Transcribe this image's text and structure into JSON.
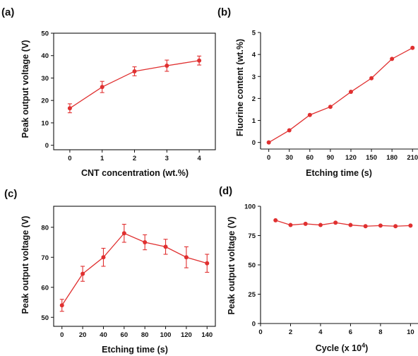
{
  "colors": {
    "series": "#e03030",
    "axis": "#111111"
  },
  "chart_data": [
    {
      "panel": "(a)",
      "type": "line",
      "xlabel": "CNT concentration (wt.%)",
      "ylabel": "Peak output voltage (V)",
      "x": [
        0,
        1,
        2,
        3,
        4
      ],
      "xticks": [
        "0",
        "1",
        "2",
        "3",
        "4"
      ],
      "xlim": [
        -0.5,
        4.5
      ],
      "ylim": [
        -2,
        50
      ],
      "yticks": [
        "0",
        "10",
        "20",
        "30",
        "40",
        "50"
      ],
      "series": [
        {
          "values": [
            16.5,
            26,
            33,
            35.5,
            37.8
          ],
          "error": [
            2,
            2.5,
            2,
            2.5,
            2
          ]
        }
      ]
    },
    {
      "panel": "(b)",
      "type": "line",
      "xlabel": "Etching time (s)",
      "ylabel": "Fluorine content (wt.%)",
      "x": [
        0,
        30,
        60,
        90,
        120,
        150,
        180,
        210
      ],
      "xticks": [
        "0",
        "30",
        "60",
        "90",
        "120",
        "150",
        "180",
        "210"
      ],
      "xlim": [
        -12,
        218
      ],
      "ylim": [
        -0.3,
        5
      ],
      "yticks": [
        "0",
        "1",
        "2",
        "3",
        "4",
        "5"
      ],
      "series": [
        {
          "values": [
            0,
            0.55,
            1.25,
            1.62,
            2.3,
            2.92,
            3.8,
            4.3
          ]
        }
      ]
    },
    {
      "panel": "(c)",
      "type": "line",
      "xlabel": "Etching time (s)",
      "ylabel": "Peak output voltage (V)",
      "x": [
        0,
        20,
        40,
        60,
        80,
        100,
        120,
        140
      ],
      "xticks": [
        "0",
        "20",
        "40",
        "60",
        "80",
        "100",
        "120",
        "140"
      ],
      "xlim": [
        -8,
        148
      ],
      "ylim": [
        47,
        87
      ],
      "yticks": [
        "50",
        "60",
        "70",
        "80"
      ],
      "ytick_values": [
        50,
        60,
        70,
        80
      ],
      "series": [
        {
          "values": [
            54,
            64.5,
            70,
            78,
            75,
            73.5,
            70,
            68
          ],
          "error": [
            2,
            2.5,
            3,
            3,
            2.5,
            2.5,
            3.5,
            3
          ]
        }
      ]
    },
    {
      "panel": "(d)",
      "type": "line",
      "xlabel": "Cycle (x 10",
      "xlabel_sup": "4",
      "xlabel_end": ")",
      "ylabel": "Peak output voltage (V)",
      "x": [
        1,
        2,
        3,
        4,
        5,
        6,
        7,
        8,
        9,
        10
      ],
      "xticks": [
        "0",
        "2",
        "4",
        "6",
        "8",
        "10"
      ],
      "xtick_values": [
        0,
        2,
        4,
        6,
        8,
        10
      ],
      "xlim": [
        0,
        10.5
      ],
      "ylim": [
        0,
        100
      ],
      "yticks": [
        "0",
        "25",
        "50",
        "75",
        "100"
      ],
      "ytick_values": [
        0,
        25,
        50,
        75,
        100
      ],
      "series": [
        {
          "values": [
            88,
            84,
            85,
            84,
            86,
            84,
            83,
            83.5,
            83,
            83.5
          ]
        }
      ]
    }
  ]
}
